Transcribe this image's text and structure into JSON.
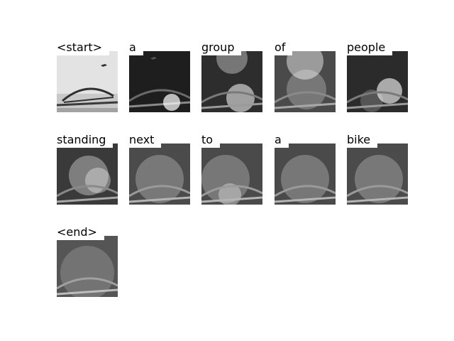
{
  "words": [
    {
      "label": "<start>",
      "thumb": "noisy-bridge"
    },
    {
      "label": "a",
      "thumb": "dark-bridge-highlight"
    },
    {
      "label": "group",
      "thumb": "attention-top-bottom"
    },
    {
      "label": "of",
      "thumb": "attention-top-center"
    },
    {
      "label": "people",
      "thumb": "attention-right-center"
    },
    {
      "label": "standing",
      "thumb": "attention-center"
    },
    {
      "label": "next",
      "thumb": "attention-diffuse"
    },
    {
      "label": "to",
      "thumb": "attention-diffuse-left"
    },
    {
      "label": "a",
      "thumb": "attention-diffuse"
    },
    {
      "label": "bike",
      "thumb": "attention-diffuse"
    },
    {
      "label": "<end>",
      "thumb": "attention-soft"
    }
  ]
}
